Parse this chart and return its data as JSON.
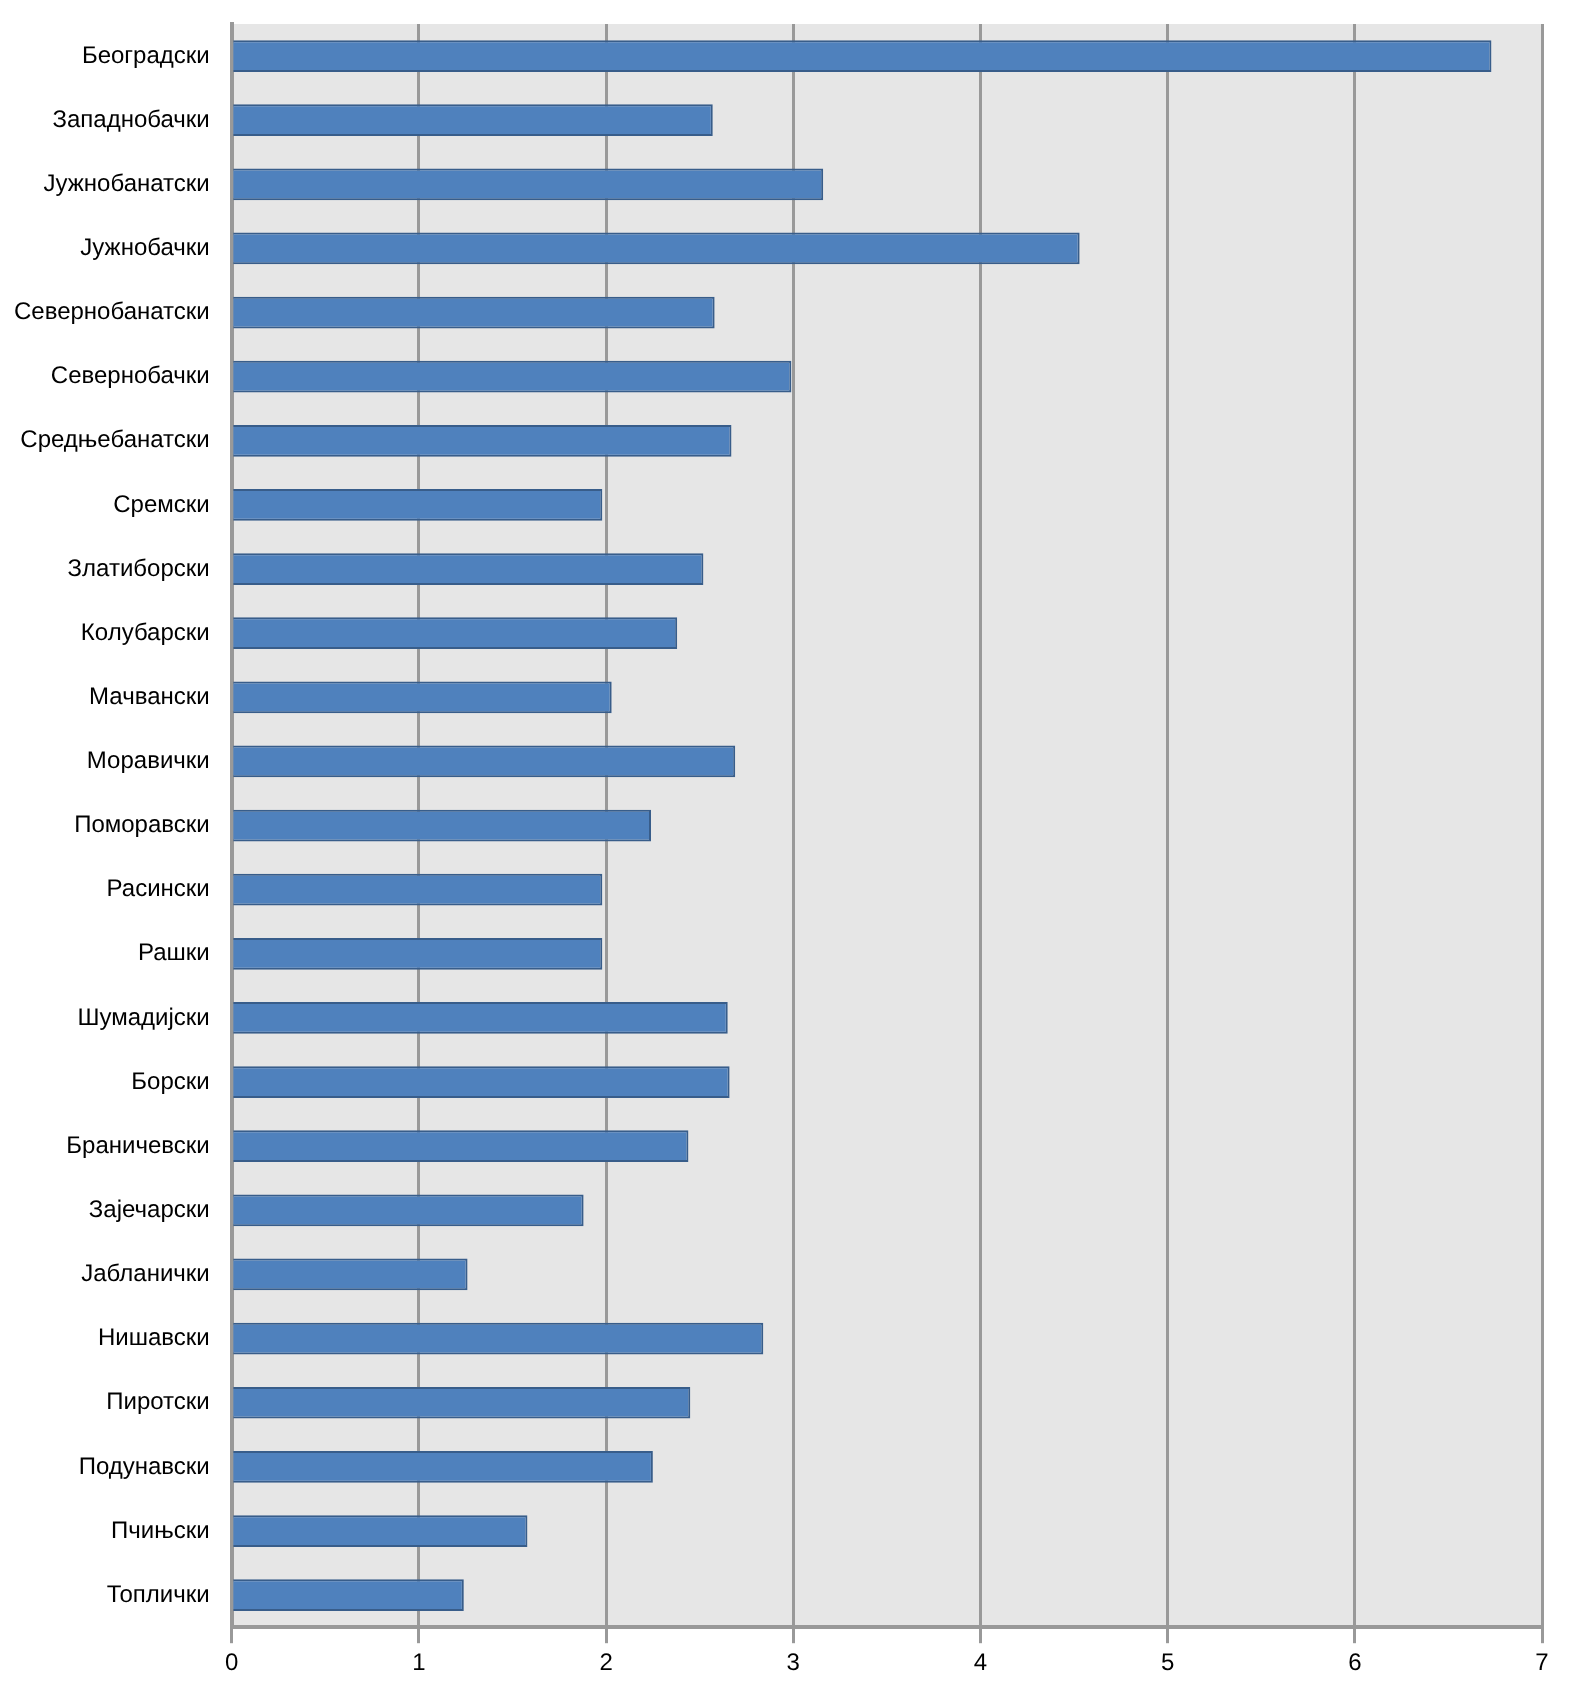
{
  "chart_data": {
    "type": "bar",
    "orientation": "horizontal",
    "categories": [
      "Београдски",
      "Западнобачки",
      "Јужнобанатски",
      "Јужнобачки",
      "Севернобанатски",
      "Севернобачки",
      "Средњебанатски",
      "Сремски",
      "Златиборски",
      "Колубарски",
      "Мачвански",
      "Моравички",
      "Поморавски",
      "Расински",
      "Рашки",
      "Шумадијски",
      "Борски",
      "Браничевски",
      "Зајечарски",
      "Јабланички",
      "Нишавски",
      "Пиротски",
      "Подунавски",
      "Пчињски",
      "Топлички"
    ],
    "values": [
      6.73,
      2.57,
      3.16,
      4.53,
      2.58,
      2.99,
      2.67,
      1.98,
      2.52,
      2.38,
      2.03,
      2.69,
      2.24,
      1.98,
      1.98,
      2.65,
      2.66,
      2.44,
      1.88,
      1.26,
      2.84,
      2.45,
      2.25,
      1.58,
      1.24
    ],
    "color": "#4f81bd",
    "xlim": [
      0,
      7
    ],
    "xticks": [
      0,
      1,
      2,
      3,
      4,
      5,
      6,
      7
    ],
    "grid": "x",
    "legend": false
  }
}
